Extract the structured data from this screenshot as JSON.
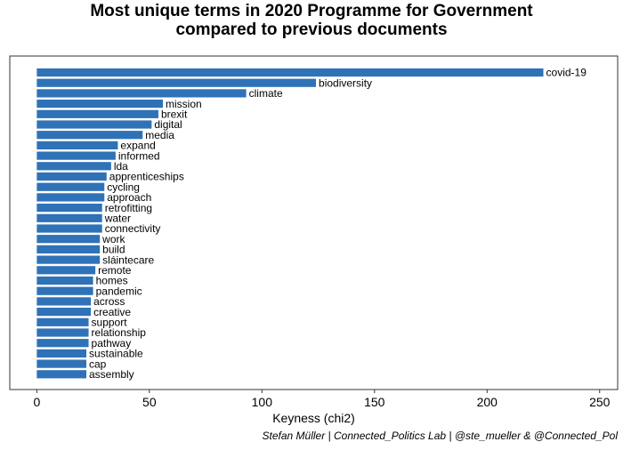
{
  "title_lines": [
    "Most unique terms in 2020 Programme for Government",
    "compared to previous documents"
  ],
  "caption": "Stefan Müller | Connected_Politics Lab | @ste_mueller & @Connected_Pol",
  "colors": {
    "bar": "#2f72b7",
    "frame": "#333333"
  },
  "chart_data": {
    "type": "bar",
    "orientation": "horizontal",
    "categories": [
      "covid-19",
      "biodiversity",
      "climate",
      "mission",
      "brexit",
      "digital",
      "media",
      "expand",
      "informed",
      "lda",
      "apprenticeships",
      "cycling",
      "approach",
      "retrofitting",
      "water",
      "connectivity",
      "work",
      "build",
      "sláintecare",
      "remote",
      "homes",
      "pandemic",
      "across",
      "creative",
      "support",
      "relationship",
      "pathway",
      "sustainable",
      "cap",
      "assembly"
    ],
    "values": [
      225,
      124,
      93,
      56,
      54,
      51,
      47,
      36,
      35,
      33,
      31,
      30,
      30,
      29,
      29,
      29,
      28,
      28,
      28,
      26,
      25,
      25,
      24,
      24,
      23,
      23,
      23,
      22,
      22,
      22
    ],
    "xlabel": "Keyness (chi2)",
    "ylabel": "",
    "xlim": [
      -12,
      258
    ],
    "xticks": [
      0,
      50,
      100,
      150,
      200,
      250
    ],
    "grid": false,
    "legend": "none"
  }
}
